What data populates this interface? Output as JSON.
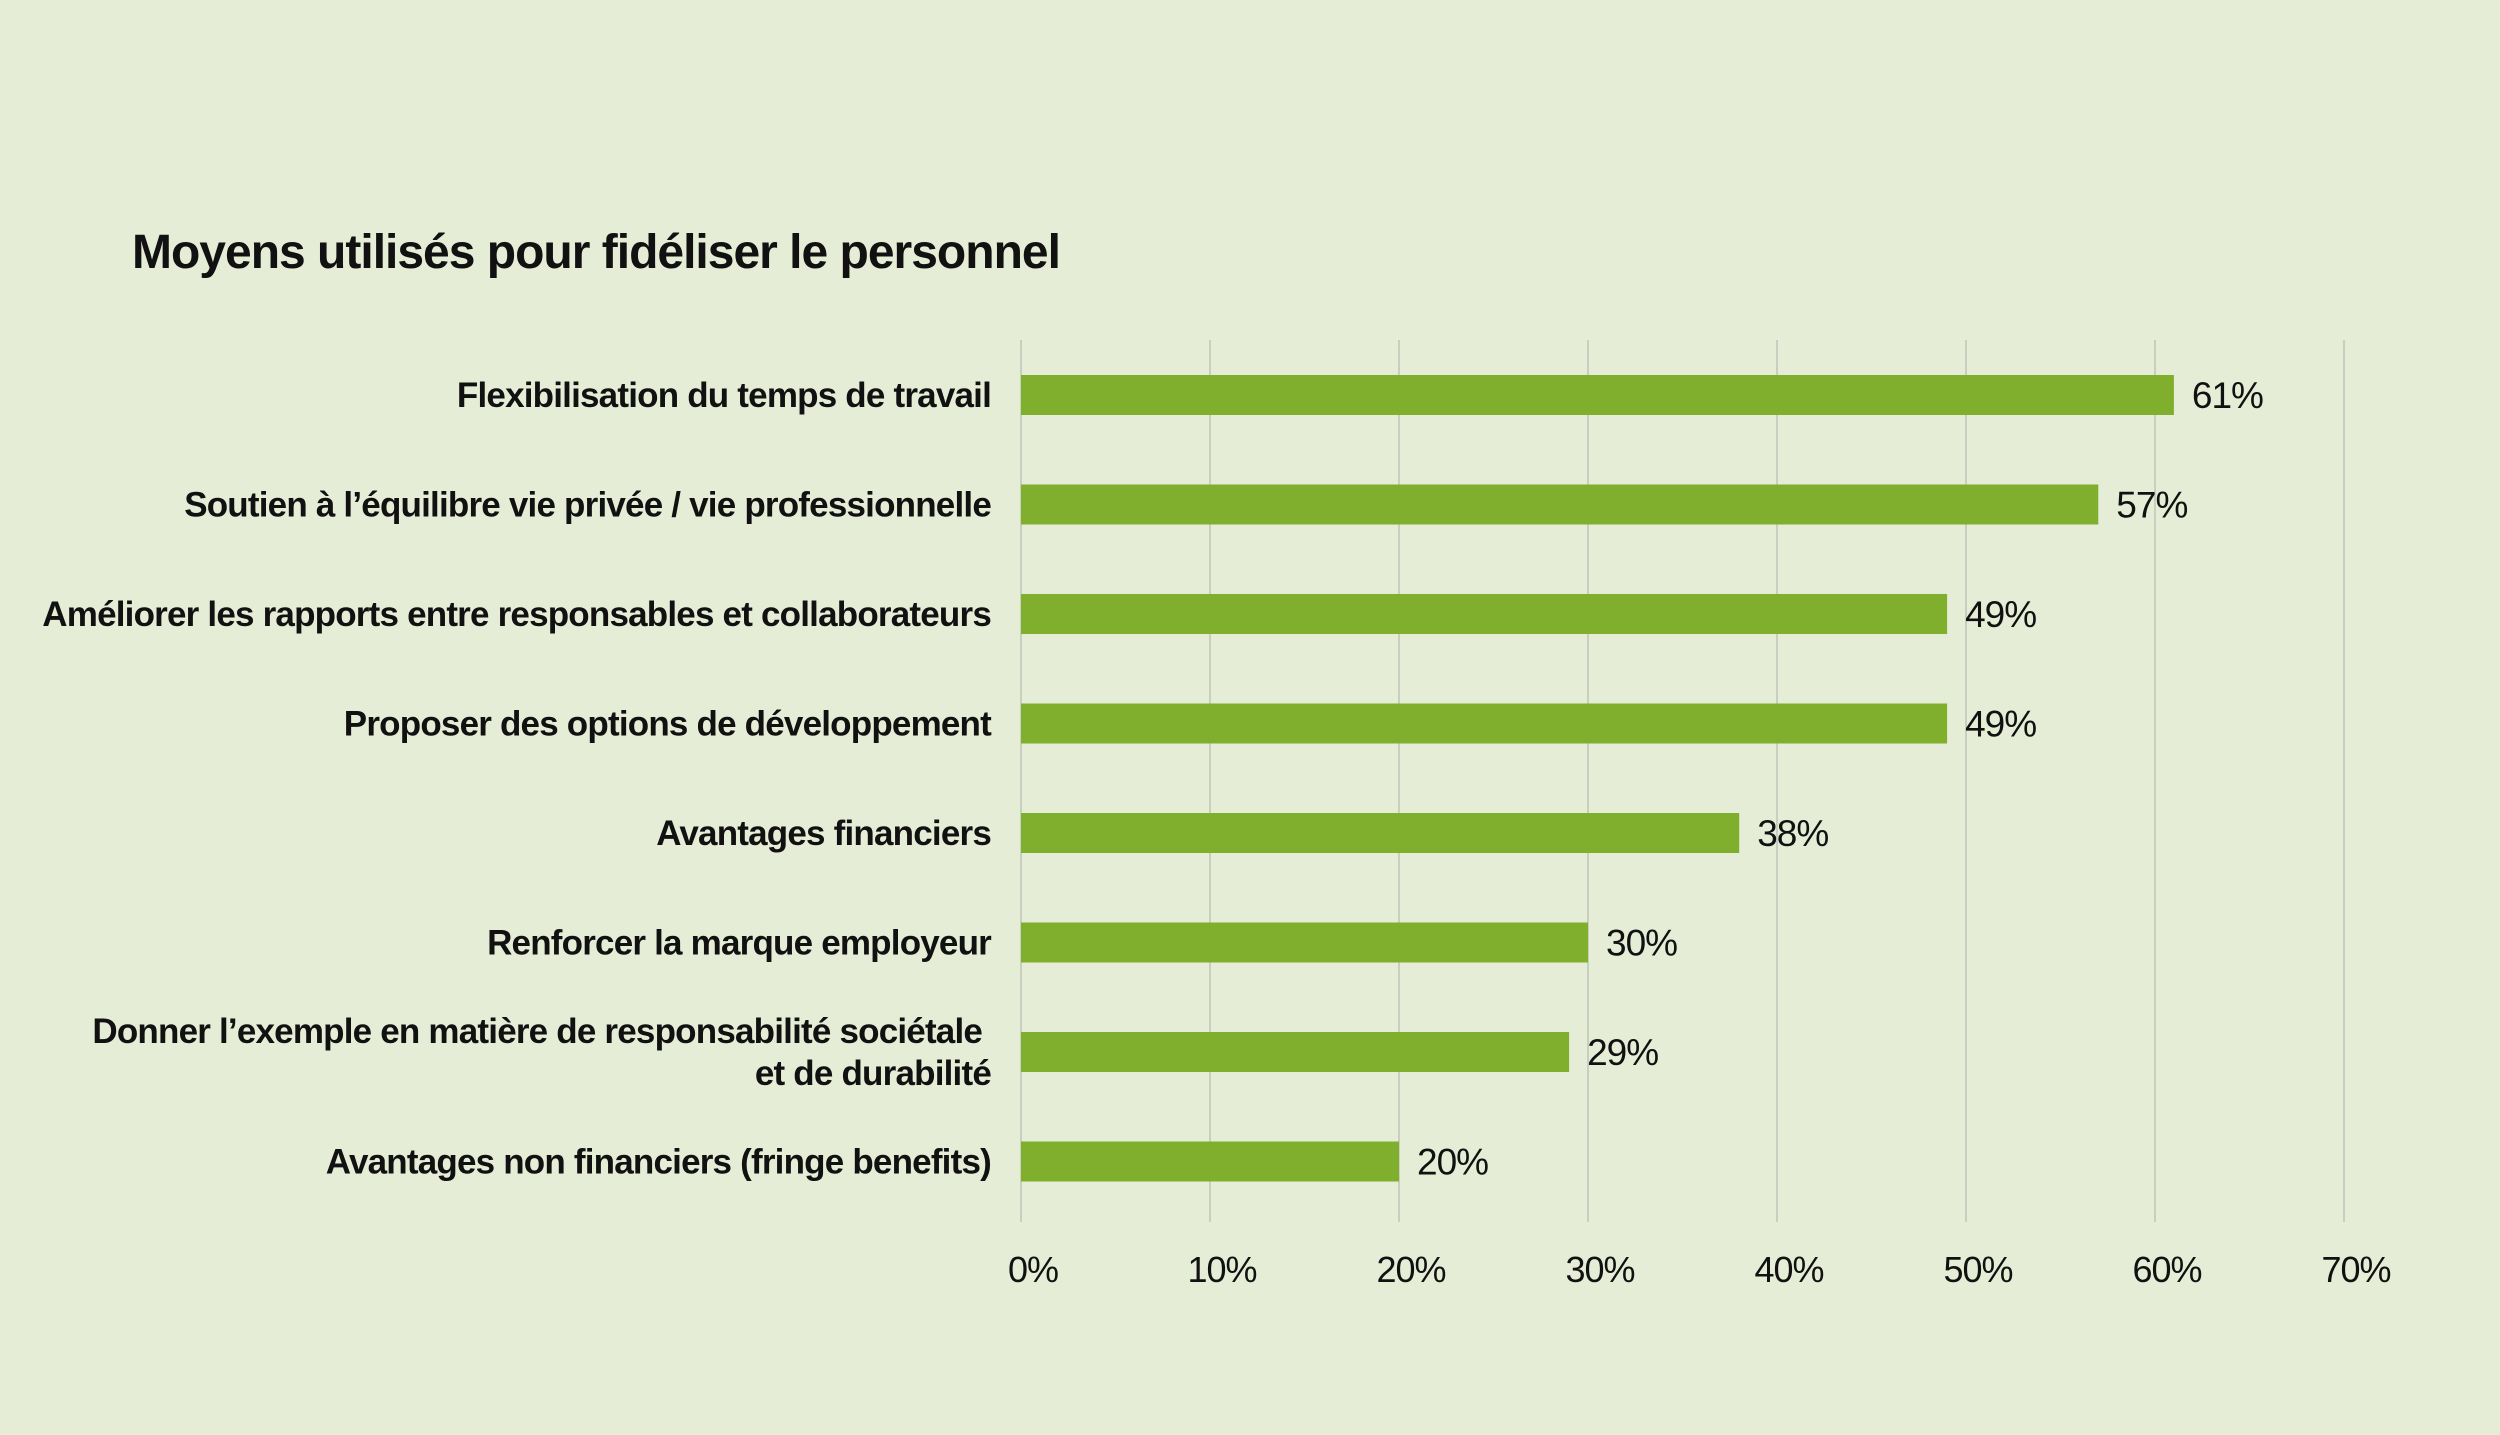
{
  "chart_data": {
    "type": "bar",
    "orientation": "horizontal",
    "title": "Moyens utilisés pour fidéliser le personnel",
    "xlabel": "",
    "ylabel": "",
    "categories": [
      "Flexibilisation du temps de travail",
      "Soutien à l’équilibre vie privée / vie professionnelle",
      "Améliorer les rapports entre responsables et collaborateurs",
      "Proposer des options de développement",
      "Avantages financiers",
      "Renforcer la marque employeur",
      "Donner l’exemple en matière de responsabilité sociétale et de durabilité",
      "Avantages non financiers (fringe benefits)"
    ],
    "category_lines": [
      [
        "Flexibilisation du temps de travail"
      ],
      [
        "Soutien à l’équilibre vie privée / vie professionnelle"
      ],
      [
        "Améliorer les rapports entre responsables et collaborateurs"
      ],
      [
        "Proposer des options de développement"
      ],
      [
        "Avantages financiers"
      ],
      [
        "Renforcer la marque employeur"
      ],
      [
        "Donner l’exemple en matière de responsabilité sociétale ",
        "et de durabilité"
      ],
      [
        "Avantages non financiers (fringe benefits)"
      ]
    ],
    "values": [
      61,
      57,
      49,
      49,
      38,
      30,
      29,
      20
    ],
    "value_labels": [
      "61%",
      "57%",
      "49%",
      "49%",
      "38%",
      "30%",
      "29%",
      "20%"
    ],
    "xlim": [
      0,
      70
    ],
    "ticks": [
      0,
      10,
      20,
      30,
      40,
      50,
      60,
      70
    ],
    "tick_labels": [
      "0%",
      "10%",
      "20%",
      "30%",
      "40%",
      "50%",
      "60%",
      "70%"
    ],
    "grid": "vertical",
    "legend": "none",
    "colors": {
      "background": "#e5edd6",
      "bar": "#7faf2c",
      "grid": "#c9cfc0",
      "text": "#111111"
    }
  }
}
